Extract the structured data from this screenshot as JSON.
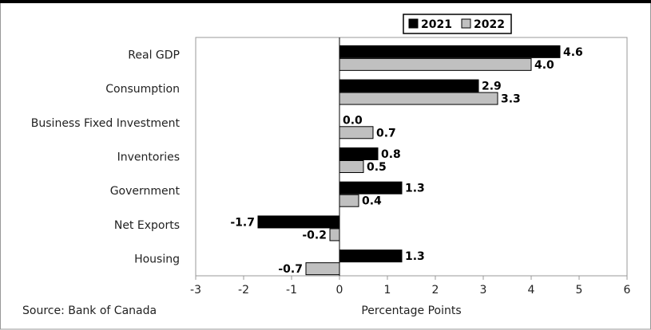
{
  "chart_data": {
    "type": "bar",
    "orientation": "horizontal",
    "x_label": "Percentage Points",
    "source": "Source: Bank of Canada",
    "categories": [
      "Real GDP",
      "Consumption",
      "Business Fixed Investment",
      "Inventories",
      "Government",
      "Net Exports",
      "Housing"
    ],
    "series": [
      {
        "name": "2021",
        "color": "#000000",
        "values": [
          4.6,
          2.9,
          0.0,
          0.8,
          1.3,
          -1.7,
          1.3
        ],
        "value_labels": [
          "4.6",
          "2.9",
          "0.0",
          "0.8",
          "1.3",
          "-1.7",
          "1.3"
        ]
      },
      {
        "name": "2022",
        "color": "#c0c0c0",
        "values": [
          4.0,
          3.3,
          0.7,
          0.5,
          0.4,
          -0.2,
          -0.7
        ],
        "value_labels": [
          "4.0",
          "3.3",
          "0.7",
          "0.5",
          "0.4",
          "-0.2",
          "-0.7"
        ]
      }
    ],
    "xlim": [
      -3,
      6
    ],
    "xticks": [
      -3,
      -2,
      -1,
      0,
      1,
      2,
      3,
      4,
      5,
      6
    ],
    "legend": "top"
  }
}
